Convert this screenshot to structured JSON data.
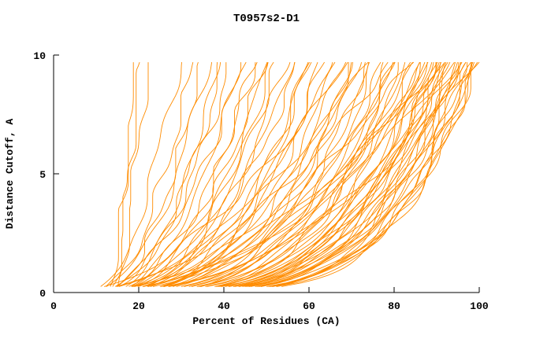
{
  "chart_data": {
    "type": "line",
    "title": "T0957s2-D1",
    "xlabel": "Percent of Residues (CA)",
    "ylabel": "Distance Cutoff, A",
    "xlim": [
      0,
      100
    ],
    "ylim": [
      0,
      10
    ],
    "x_ticks": [
      0,
      20,
      40,
      60,
      80,
      100
    ],
    "y_ticks": [
      0,
      5,
      10
    ],
    "grid": false,
    "legend": null,
    "line_color": "#ff8c00",
    "axis_color": "#000000",
    "background": "#ffffff",
    "y_start": 0.25,
    "y_end": 9.7,
    "curve_param_format": "[x_at_bottom, x_at_top, shape_exponent] for x(y)=x0+(x1-x0)*(y/10)^(1/k)",
    "curves": [
      [
        13,
        19,
        1.3
      ],
      [
        13.5,
        20,
        1.4
      ],
      [
        14,
        22,
        1.5
      ],
      [
        9,
        30,
        1.8
      ],
      [
        10,
        33,
        1.9
      ],
      [
        11,
        35,
        2.0
      ],
      [
        9,
        37,
        2.0
      ],
      [
        12,
        39,
        2.1
      ],
      [
        10,
        40,
        2.2
      ],
      [
        8,
        42,
        2.2
      ],
      [
        11,
        44,
        2.3
      ],
      [
        9,
        45,
        2.0
      ],
      [
        12,
        47,
        2.4
      ],
      [
        10,
        48,
        2.2
      ],
      [
        8,
        50,
        2.5
      ],
      [
        11,
        52,
        2.3
      ],
      [
        9,
        53,
        2.6
      ],
      [
        12,
        55,
        2.4
      ],
      [
        10,
        56,
        2.7
      ],
      [
        8,
        58,
        2.5
      ],
      [
        11,
        60,
        2.8
      ],
      [
        9,
        61,
        2.6
      ],
      [
        12,
        63,
        2.9
      ],
      [
        10,
        64,
        2.7
      ],
      [
        8,
        65,
        3.0
      ],
      [
        11,
        67,
        2.8
      ],
      [
        9,
        68,
        3.1
      ],
      [
        12,
        70,
        2.9
      ],
      [
        10,
        71,
        3.2
      ],
      [
        8,
        72,
        3.0
      ],
      [
        11,
        74,
        3.3
      ],
      [
        9,
        75,
        3.1
      ],
      [
        12,
        76,
        3.4
      ],
      [
        10,
        78,
        3.2
      ],
      [
        8,
        79,
        3.5
      ],
      [
        11,
        80,
        3.3
      ],
      [
        9,
        81,
        3.6
      ],
      [
        12,
        82,
        3.4
      ],
      [
        10,
        83,
        3.7
      ],
      [
        8,
        84,
        3.5
      ],
      [
        11,
        85,
        3.8
      ],
      [
        9,
        86,
        3.6
      ],
      [
        12,
        87,
        3.9
      ],
      [
        10,
        88,
        3.7
      ],
      [
        7,
        88,
        4.0
      ],
      [
        11,
        89,
        3.8
      ],
      [
        9,
        90,
        4.1
      ],
      [
        12,
        90,
        3.9
      ],
      [
        10,
        91,
        4.2
      ],
      [
        8,
        91,
        4.0
      ],
      [
        11,
        92,
        4.3
      ],
      [
        9,
        92,
        3.6
      ],
      [
        12,
        93,
        4.4
      ],
      [
        10,
        93,
        3.8
      ],
      [
        7,
        94,
        4.5
      ],
      [
        11,
        94,
        4.0
      ],
      [
        9,
        95,
        4.6
      ],
      [
        12,
        95,
        4.2
      ],
      [
        10,
        96,
        4.7
      ],
      [
        8,
        96,
        4.4
      ],
      [
        11,
        97,
        4.8
      ],
      [
        9,
        97,
        4.5
      ],
      [
        12,
        98,
        4.9
      ],
      [
        10,
        98,
        4.6
      ],
      [
        7,
        99,
        5.0
      ],
      [
        11,
        99,
        4.7
      ],
      [
        9,
        100,
        4.8
      ],
      [
        10,
        100,
        5.0
      ],
      [
        6,
        85,
        2.0
      ],
      [
        7,
        90,
        2.2
      ],
      [
        6,
        95,
        2.1
      ],
      [
        7,
        100,
        2.3
      ],
      [
        5,
        80,
        1.9
      ],
      [
        6,
        75,
        1.8
      ],
      [
        5,
        70,
        1.7
      ],
      [
        6,
        88,
        2.4
      ],
      [
        5,
        92,
        2.0
      ],
      [
        7,
        96,
        2.5
      ],
      [
        15,
        70,
        3.5
      ],
      [
        14,
        80,
        3.8
      ],
      [
        15,
        90,
        4.0
      ],
      [
        14,
        95,
        4.2
      ],
      [
        15,
        100,
        4.5
      ],
      [
        13,
        60,
        3.0
      ],
      [
        14,
        50,
        2.6
      ]
    ]
  }
}
